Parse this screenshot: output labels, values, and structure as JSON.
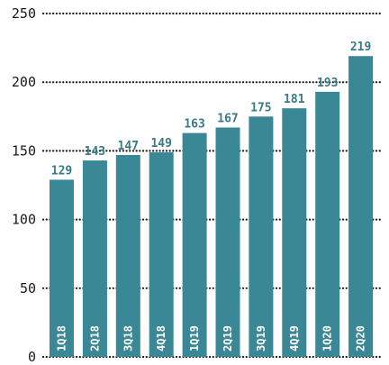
{
  "chart_data": {
    "type": "bar",
    "categories": [
      "1Q18",
      "2Q18",
      "3Q18",
      "4Q18",
      "1Q19",
      "2Q19",
      "3Q19",
      "4Q19",
      "1Q20",
      "2Q20"
    ],
    "series": [
      {
        "values": [
          129,
          143,
          147,
          149,
          163,
          167,
          175,
          181,
          193,
          219
        ]
      }
    ],
    "data_labels": [
      "129",
      "143",
      "147",
      "149",
      "163",
      "167",
      "175",
      "181",
      "193",
      "219"
    ],
    "y_ticks": [
      "0",
      "50",
      "100",
      "150",
      "200",
      "250"
    ],
    "ylim": [
      0,
      250
    ],
    "grid": true,
    "grid_style": "dotted",
    "category_labels_inside_bars": true,
    "colors": {
      "bar": "#3a8795",
      "data_label": "#3a7a88",
      "category_label": "#ffffff",
      "grid": "#1a1a1a",
      "axis_text": "#1a1a1a"
    }
  }
}
